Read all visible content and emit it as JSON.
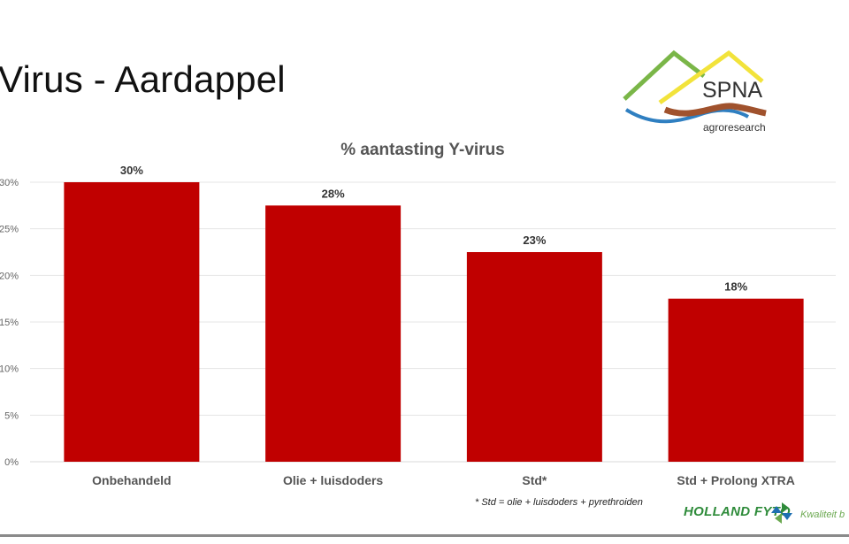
{
  "slide": {
    "title": "Virus - Aardappel",
    "footnote": "* Std = olie + luisdoders + pyrethroiden"
  },
  "logos": {
    "spna_name": "SPNA",
    "spna_subtitle": "agroresearch",
    "hollandfyto_name": "HOLLAND FYTO",
    "hollandfyto_tagline": "Kwaliteit b"
  },
  "colors": {
    "bar": "#c00000",
    "grid": "#e4e4e4",
    "axis": "#d9d9d9",
    "spna_green": "#7ab648",
    "spna_yellow": "#f2e33b",
    "spna_blue": "#2f7fc1",
    "spna_brown": "#a0522d"
  },
  "chart_data": {
    "type": "bar",
    "title": "% aantasting Y-virus",
    "categories": [
      "Onbehandeld",
      "Olie + luisdoders",
      "Std*",
      "Std + Prolong XTRA"
    ],
    "values": [
      30,
      27.5,
      22.5,
      17.5
    ],
    "data_labels": [
      "30%",
      "28%",
      "23%",
      "18%"
    ],
    "y_ticks": [
      0,
      5,
      10,
      15,
      20,
      25,
      30
    ],
    "y_tick_labels": [
      "0%",
      "5%",
      "10%",
      "15%",
      "20%",
      "25%",
      "30%"
    ],
    "ylim": [
      0,
      30
    ],
    "xlabel": "",
    "ylabel": "",
    "grid": true,
    "legend": "none"
  }
}
